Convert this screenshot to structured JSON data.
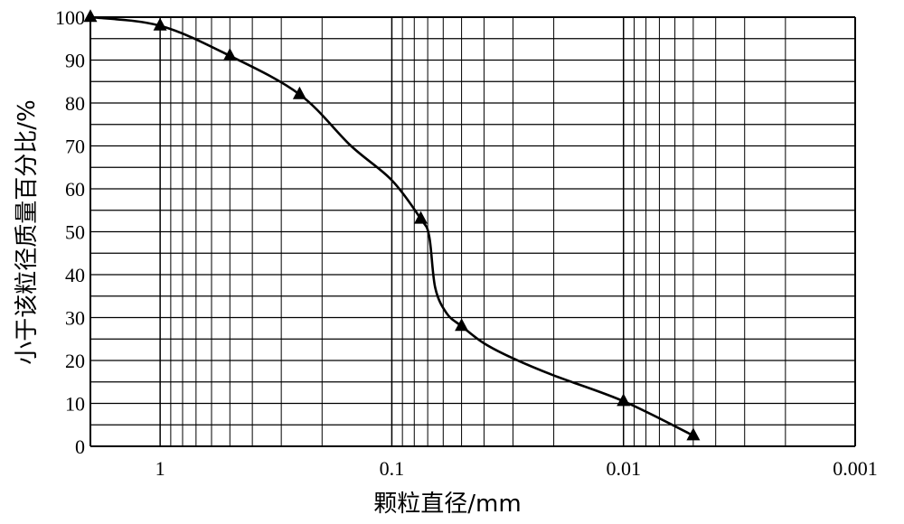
{
  "chart_data": {
    "type": "line",
    "title": "",
    "xlabel": "颗粒直径/mm",
    "ylabel": "小于该粒径质量百分比/%",
    "x_scale": "log",
    "x_reversed": true,
    "xlim": [
      2,
      0.001
    ],
    "ylim": [
      0,
      100
    ],
    "x_ticks": [
      {
        "value": 1,
        "label": "1"
      },
      {
        "value": 0.1,
        "label": "0.1"
      },
      {
        "value": 0.01,
        "label": "0.01"
      },
      {
        "value": 0.001,
        "label": "0.001"
      }
    ],
    "y_ticks": [
      {
        "value": 0,
        "label": "0"
      },
      {
        "value": 10,
        "label": "10"
      },
      {
        "value": 20,
        "label": "20"
      },
      {
        "value": 30,
        "label": "30"
      },
      {
        "value": 40,
        "label": "40"
      },
      {
        "value": 50,
        "label": "50"
      },
      {
        "value": 60,
        "label": "60"
      },
      {
        "value": 70,
        "label": "70"
      },
      {
        "value": 80,
        "label": "80"
      },
      {
        "value": 90,
        "label": "90"
      },
      {
        "value": 100,
        "label": "100"
      }
    ],
    "grid": true,
    "marker": "triangle",
    "color": "#000000",
    "series": [
      {
        "points": [
          {
            "x": 2,
            "y": 100
          },
          {
            "x": 1,
            "y": 98
          },
          {
            "x": 0.5,
            "y": 91
          },
          {
            "x": 0.25,
            "y": 82
          },
          {
            "x": 0.075,
            "y": 53
          },
          {
            "x": 0.05,
            "y": 28
          },
          {
            "x": 0.01,
            "y": 10.5
          },
          {
            "x": 0.005,
            "y": 2.5
          }
        ],
        "curve": [
          {
            "x": 2,
            "y": 100
          },
          {
            "x": 1,
            "y": 98
          },
          {
            "x": 0.5,
            "y": 91
          },
          {
            "x": 0.25,
            "y": 82
          },
          {
            "x": 0.15,
            "y": 70
          },
          {
            "x": 0.1,
            "y": 62
          },
          {
            "x": 0.075,
            "y": 53
          },
          {
            "x": 0.069,
            "y": 49
          },
          {
            "x": 0.065,
            "y": 37
          },
          {
            "x": 0.058,
            "y": 31
          },
          {
            "x": 0.05,
            "y": 28
          },
          {
            "x": 0.04,
            "y": 24
          },
          {
            "x": 0.03,
            "y": 20.5
          },
          {
            "x": 0.02,
            "y": 16.5
          },
          {
            "x": 0.01,
            "y": 10.5
          },
          {
            "x": 0.005,
            "y": 2.5
          }
        ]
      }
    ]
  }
}
